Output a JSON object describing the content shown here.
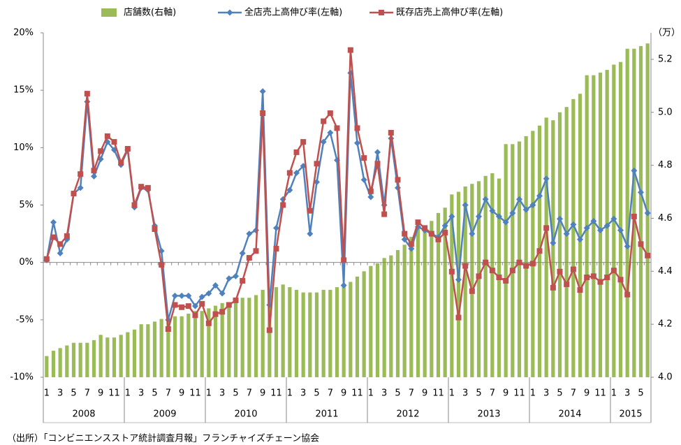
{
  "chart_data": {
    "type": "combo",
    "categories": [
      "1",
      null,
      "3",
      null,
      "5",
      null,
      "7",
      null,
      "9",
      null,
      "11",
      null,
      "1",
      null,
      "3",
      null,
      "5",
      null,
      "7",
      null,
      "9",
      null,
      "11",
      null,
      "1",
      null,
      "3",
      null,
      "5",
      null,
      "7",
      null,
      "9",
      null,
      "11",
      null,
      "1",
      null,
      "3",
      null,
      "5",
      null,
      "7",
      null,
      "9",
      null,
      "11",
      null,
      "1",
      null,
      "3",
      null,
      "5",
      null,
      "7",
      null,
      "9",
      null,
      "11",
      null,
      "1",
      null,
      "3",
      null,
      "5",
      null,
      "7",
      null,
      "9",
      null,
      "11",
      null,
      "1",
      null,
      "3",
      null,
      "5",
      null,
      "7",
      null,
      "9",
      null,
      "11",
      null,
      "1",
      null,
      "3",
      null,
      "5",
      null
    ],
    "years": [
      "2008",
      "2009",
      "2010",
      "2011",
      "2012",
      "2013",
      "2014",
      "2015"
    ],
    "series": [
      {
        "name": "店舗数(右軸)",
        "type": "bar",
        "axis": "y2",
        "color": "#9bbb59",
        "values": [
          4.08,
          4.1,
          4.11,
          4.12,
          4.13,
          4.13,
          4.13,
          4.14,
          4.16,
          4.15,
          4.15,
          4.16,
          4.17,
          4.18,
          4.2,
          4.2,
          4.21,
          4.22,
          4.22,
          4.23,
          4.23,
          4.24,
          4.25,
          4.25,
          4.26,
          4.27,
          4.28,
          4.28,
          4.29,
          4.3,
          4.3,
          4.31,
          4.33,
          4.33,
          4.34,
          4.35,
          4.34,
          4.33,
          4.32,
          4.32,
          4.32,
          4.33,
          4.33,
          4.34,
          4.35,
          4.36,
          4.38,
          4.4,
          4.42,
          4.43,
          4.45,
          4.46,
          4.48,
          4.5,
          4.53,
          4.56,
          4.57,
          4.59,
          4.62,
          4.64,
          4.69,
          4.7,
          4.72,
          4.73,
          4.74,
          4.76,
          4.77,
          4.75,
          4.88,
          4.88,
          4.89,
          4.91,
          4.93,
          4.95,
          4.98,
          4.97,
          5.0,
          5.02,
          5.05,
          5.07,
          5.14,
          5.14,
          5.15,
          5.16,
          5.18,
          5.19,
          5.24,
          5.24,
          5.25,
          5.26
        ]
      },
      {
        "name": "全店売上高伸び率(左軸)",
        "type": "line",
        "marker": "diamond",
        "color": "#4f81bd",
        "values": [
          0.2,
          3.5,
          0.8,
          2.0,
          6.0,
          6.5,
          14.0,
          7.5,
          9.0,
          10.5,
          9.8,
          8.5,
          9.8,
          4.8,
          6.5,
          6.3,
          3.2,
          1.0,
          -5.0,
          -2.9,
          -2.9,
          -2.9,
          -3.8,
          -3.0,
          -2.7,
          -2.0,
          -2.7,
          -1.4,
          -1.2,
          0.8,
          2.5,
          2.8,
          14.9,
          -3.7,
          3.0,
          5.5,
          6.3,
          7.8,
          8.4,
          2.5,
          7.0,
          10.5,
          11.3,
          8.9,
          -2.0,
          16.5,
          10.4,
          7.2,
          5.7,
          9.6,
          5.0,
          10.8,
          6.5,
          2.0,
          1.2,
          3.1,
          2.8,
          2.5,
          2.2,
          3.2,
          4.0,
          -1.5,
          5.0,
          2.5,
          4.0,
          5.5,
          4.5,
          4.0,
          3.5,
          4.3,
          5.5,
          4.6,
          5.0,
          5.8,
          7.3,
          1.7,
          3.8,
          2.5,
          3.3,
          2.0,
          3.0,
          3.6,
          2.8,
          3.2,
          3.8,
          2.8,
          1.4,
          8.0,
          6.1,
          4.3
        ]
      },
      {
        "name": "既存店売上高伸び率(左軸)",
        "type": "line",
        "marker": "square",
        "color": "#c0504d",
        "values": [
          0.3,
          2.2,
          1.6,
          2.3,
          6.0,
          7.7,
          14.7,
          8.0,
          9.7,
          11.0,
          10.5,
          8.7,
          9.9,
          5.0,
          6.6,
          6.5,
          2.9,
          -0.2,
          -5.8,
          -3.7,
          -3.9,
          -3.8,
          -4.6,
          -3.6,
          -5.3,
          -4.5,
          -4.3,
          -3.7,
          -3.3,
          -1.6,
          0.4,
          1.0,
          13.0,
          -5.9,
          1.2,
          5.0,
          7.8,
          9.6,
          10.5,
          4.5,
          8.6,
          12.3,
          13.0,
          11.7,
          0.2,
          18.5,
          11.7,
          9.1,
          6.2,
          8.6,
          4.2,
          11.3,
          7.2,
          2.5,
          1.6,
          3.5,
          3.0,
          2.5,
          2.0,
          2.6,
          -0.8,
          -4.8,
          -0.3,
          -2.5,
          -1.2,
          0.0,
          -0.7,
          -1.3,
          -1.6,
          -0.7,
          0.0,
          -0.3,
          -0.1,
          1.0,
          3.0,
          -2.2,
          -0.8,
          -1.9,
          -0.6,
          -2.4,
          -1.3,
          -1.2,
          -1.7,
          -1.3,
          -0.7,
          -1.5,
          -2.8,
          4.0,
          1.6,
          0.6
        ]
      }
    ],
    "ylim": [
      -10,
      20
    ],
    "yticks": [
      {
        "value": -10,
        "label": "-10%"
      },
      {
        "value": -5,
        "label": "-5%"
      },
      {
        "value": 0,
        "label": "0%"
      },
      {
        "value": 5,
        "label": "5%"
      },
      {
        "value": 10,
        "label": "10%"
      },
      {
        "value": 15,
        "label": "15%"
      },
      {
        "value": 20,
        "label": "20%"
      }
    ],
    "y2lim": [
      4.0,
      5.3
    ],
    "y2ticks": [
      {
        "value": 4.0,
        "label": "4.0"
      },
      {
        "value": 4.2,
        "label": "4.2"
      },
      {
        "value": 4.4,
        "label": "4.4"
      },
      {
        "value": 4.6,
        "label": "4.6"
      },
      {
        "value": 4.8,
        "label": "4.8"
      },
      {
        "value": 5.0,
        "label": "5.0"
      },
      {
        "value": 5.2,
        "label": "5.2"
      }
    ],
    "y2_unit": "（万）",
    "source": "（出所）「コンビニエンスストア統計調査月報」フランチャイズチェーン協会"
  }
}
